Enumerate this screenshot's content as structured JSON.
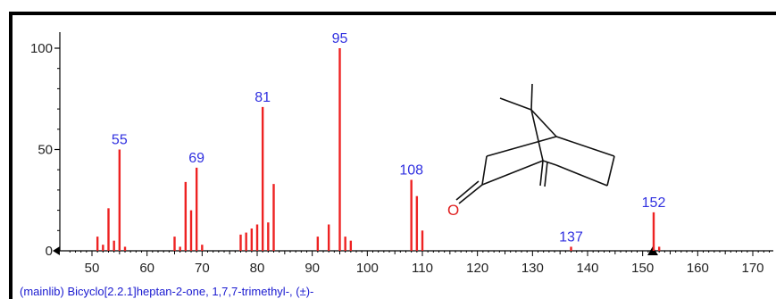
{
  "chart_data": {
    "type": "bar",
    "caption": "(mainlib) Bicyclo[2.2.1]heptan-2-one, 1,7,7-trimethyl-, (±)-",
    "xlim": [
      45,
      174
    ],
    "ylim": [
      0,
      110
    ],
    "x_ticks": [
      50,
      60,
      70,
      80,
      90,
      100,
      110,
      120,
      130,
      140,
      150,
      160,
      170
    ],
    "y_ticks": [
      0,
      50,
      100
    ],
    "grid": false,
    "bar_color": "#ee2222",
    "label_color": "#3030e0",
    "points": [
      {
        "x": 51,
        "y": 7
      },
      {
        "x": 52,
        "y": 3
      },
      {
        "x": 53,
        "y": 21
      },
      {
        "x": 54,
        "y": 5
      },
      {
        "x": 55,
        "y": 50,
        "label": "55"
      },
      {
        "x": 56,
        "y": 2
      },
      {
        "x": 65,
        "y": 7
      },
      {
        "x": 66,
        "y": 2
      },
      {
        "x": 67,
        "y": 34
      },
      {
        "x": 68,
        "y": 20
      },
      {
        "x": 69,
        "y": 41,
        "label": "69"
      },
      {
        "x": 70,
        "y": 3
      },
      {
        "x": 77,
        "y": 8
      },
      {
        "x": 78,
        "y": 9
      },
      {
        "x": 79,
        "y": 11
      },
      {
        "x": 80,
        "y": 13
      },
      {
        "x": 81,
        "y": 71,
        "label": "81"
      },
      {
        "x": 82,
        "y": 14
      },
      {
        "x": 83,
        "y": 33
      },
      {
        "x": 91,
        "y": 7
      },
      {
        "x": 93,
        "y": 13
      },
      {
        "x": 95,
        "y": 100,
        "label": "95"
      },
      {
        "x": 96,
        "y": 7
      },
      {
        "x": 97,
        "y": 5
      },
      {
        "x": 108,
        "y": 35,
        "label": "108"
      },
      {
        "x": 109,
        "y": 27
      },
      {
        "x": 110,
        "y": 10
      },
      {
        "x": 137,
        "y": 2,
        "label": "137"
      },
      {
        "x": 152,
        "y": 19,
        "label": "152"
      },
      {
        "x": 153,
        "y": 2
      }
    ]
  },
  "structure": {
    "atom_label": "O"
  }
}
